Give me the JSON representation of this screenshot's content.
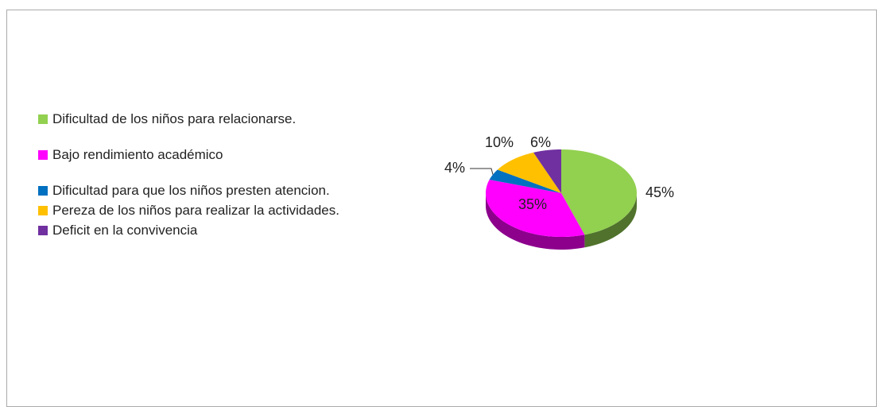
{
  "chart_data": {
    "type": "pie3d",
    "categories": [
      "Dificultad de los niños para relacionarse.",
      "Bajo rendimiento académico",
      "Dificultad para que los niños presten atencion.",
      "Pereza de los niños para realizar la actividades.",
      "Deficit en la convivencia"
    ],
    "values": [
      45,
      35,
      4,
      10,
      6
    ],
    "value_labels": [
      "45%",
      "35%",
      "4%",
      "10%",
      "6%"
    ],
    "colors": [
      "#92d050",
      "#ff00ff",
      "#0070c0",
      "#ffc000",
      "#7030a0"
    ],
    "legend": "left"
  }
}
